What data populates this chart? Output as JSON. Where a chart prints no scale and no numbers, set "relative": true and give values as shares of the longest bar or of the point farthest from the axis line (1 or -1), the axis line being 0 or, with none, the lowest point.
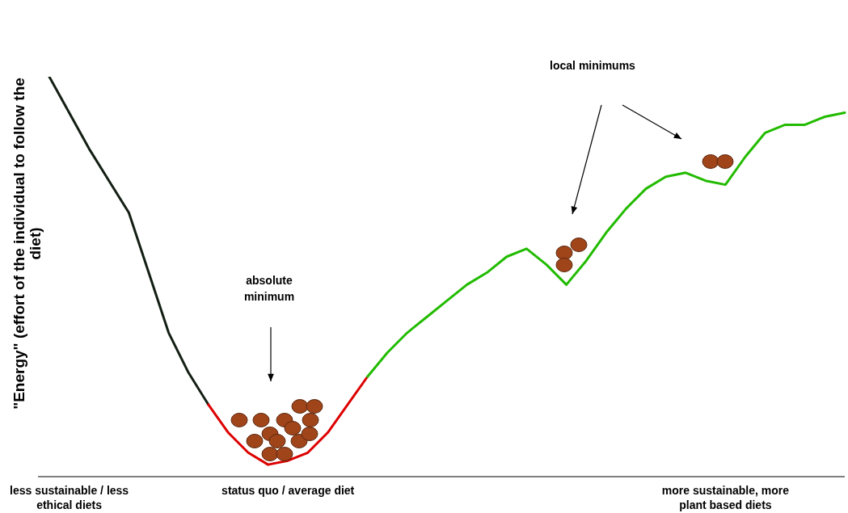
{
  "chart_data": {
    "type": "line",
    "relative": true,
    "legend": false,
    "grid": false,
    "marker": "none",
    "ylabel": "\"Energy\" (effort of the individual to follow the diet)",
    "categories": [
      null,
      "less sustainable / less ethical diets",
      null,
      null,
      null,
      null,
      null,
      null,
      null,
      null,
      null,
      null,
      "status quo / average diet",
      null,
      null,
      null,
      null,
      null,
      null,
      null,
      null,
      null,
      null,
      null,
      null,
      null,
      null,
      null,
      null,
      null,
      null,
      null,
      null,
      null,
      "more sustainable, more plant based diets",
      null,
      null,
      null,
      null,
      null,
      null
    ],
    "series": [
      {
        "color": "#141f14",
        "values": [
          1.0,
          0.91,
          0.82,
          0.74,
          0.66,
          0.51,
          0.36,
          0.26,
          0.18,
          null,
          null,
          null,
          null,
          null,
          null,
          null,
          null,
          null,
          null,
          null,
          null,
          null,
          null,
          null,
          null,
          null,
          null,
          null,
          null,
          null,
          null,
          null,
          null,
          null,
          null,
          null,
          null,
          null,
          null,
          null,
          null
        ]
      },
      {
        "color": "#dd0000",
        "values": [
          null,
          null,
          null,
          null,
          null,
          null,
          null,
          null,
          0.18,
          0.11,
          0.06,
          0.03,
          0.04,
          0.06,
          0.11,
          0.18,
          0.25,
          null,
          null,
          null,
          null,
          null,
          null,
          null,
          null,
          null,
          null,
          null,
          null,
          null,
          null,
          null,
          null,
          null,
          null,
          null,
          null,
          null,
          null,
          null,
          null
        ]
      },
      {
        "color": "#22bb00",
        "values": [
          null,
          null,
          null,
          null,
          null,
          null,
          null,
          null,
          null,
          null,
          null,
          null,
          null,
          null,
          null,
          null,
          0.25,
          0.31,
          0.36,
          0.4,
          0.44,
          0.48,
          0.51,
          0.55,
          0.57,
          0.53,
          0.48,
          0.54,
          0.61,
          0.67,
          0.72,
          0.75,
          0.76,
          0.74,
          0.73,
          0.8,
          0.86,
          0.88,
          0.88,
          0.9,
          0.91
        ]
      }
    ],
    "annotations": [
      "absolute minimum",
      "local minimums"
    ]
  }
}
